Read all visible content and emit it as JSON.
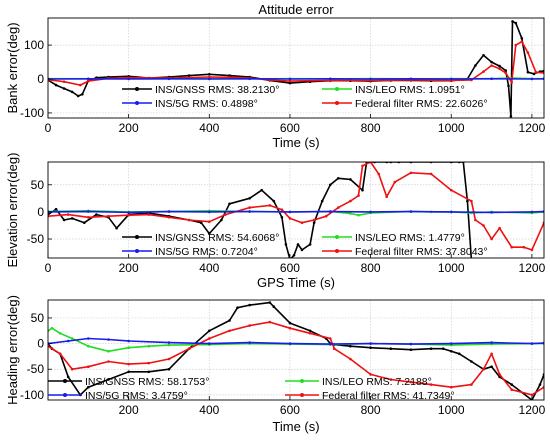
{
  "colors": {
    "ins_gnss": "#000000",
    "ins_leo": "#22dd22",
    "ins_5g": "#1a1aee",
    "federal": "#ee1111",
    "grid": "#cfcfcf",
    "zero_line": "#111111"
  },
  "chart_data": [
    {
      "type": "line",
      "title": "Attitude error",
      "xlabel": "Time (s)",
      "ylabel": "Bank error(deg)",
      "xlim": [
        0,
        1230
      ],
      "ylim": [
        -115,
        180
      ],
      "xticks": [
        0,
        200,
        400,
        600,
        800,
        1000,
        1200
      ],
      "yticks": [
        -100,
        0,
        100
      ],
      "grid": true,
      "legend": "lower-middle",
      "series": [
        {
          "name": "INS/GNSS RMS: 38.2130°",
          "color_key": "ins_gnss",
          "marker": "*",
          "x": [
            0,
            20,
            40,
            60,
            75,
            85,
            100,
            120,
            150,
            200,
            250,
            300,
            350,
            400,
            450,
            500,
            550,
            600,
            650,
            700,
            750,
            800,
            850,
            900,
            950,
            1000,
            1040,
            1060,
            1080,
            1100,
            1120,
            1135,
            1142,
            1148,
            1152,
            1160,
            1175,
            1190,
            1205,
            1220,
            1230
          ],
          "y": [
            -3,
            -18,
            -28,
            -38,
            -50,
            -45,
            -5,
            4,
            6,
            8,
            3,
            6,
            10,
            14,
            10,
            6,
            -4,
            -12,
            -8,
            -5,
            -5,
            -6,
            -4,
            -4,
            -5,
            -5,
            0,
            40,
            70,
            50,
            38,
            25,
            -20,
            -110,
            170,
            165,
            120,
            20,
            15,
            22,
            24
          ]
        },
        {
          "name": "INS/LEO RMS: 1.0951°",
          "color_key": "ins_leo",
          "marker": "*",
          "x": [
            0,
            100,
            200,
            300,
            400,
            500,
            600,
            700,
            800,
            900,
            1000,
            1100,
            1150,
            1200,
            1230
          ],
          "y": [
            1,
            0.5,
            1,
            0.5,
            1,
            0.5,
            1,
            0.5,
            1,
            0.5,
            1,
            1,
            3,
            1,
            1
          ]
        },
        {
          "name": "INS/5G RMS: 0.4898°",
          "color_key": "ins_5g",
          "marker": "*",
          "x": [
            0,
            100,
            200,
            300,
            400,
            500,
            600,
            700,
            800,
            900,
            1000,
            1100,
            1200,
            1230
          ],
          "y": [
            0,
            0.5,
            0,
            0.5,
            0,
            0.5,
            0,
            0.5,
            0,
            0.5,
            0,
            0.5,
            0,
            0.5
          ]
        },
        {
          "name": "Federal filter RMS: 22.6026°",
          "color_key": "federal",
          "marker": "*",
          "x": [
            0,
            40,
            80,
            100,
            150,
            200,
            300,
            400,
            450,
            500,
            550,
            600,
            700,
            800,
            900,
            1000,
            1050,
            1080,
            1100,
            1120,
            1135,
            1150,
            1160,
            1175,
            1190,
            1210,
            1230
          ],
          "y": [
            -2,
            -8,
            -18,
            -6,
            2,
            4,
            3,
            6,
            5,
            3,
            -3,
            -6,
            -4,
            -4,
            -3,
            -4,
            -3,
            22,
            40,
            30,
            18,
            -10,
            100,
            110,
            78,
            20,
            18
          ]
        }
      ]
    },
    {
      "type": "line",
      "title": "",
      "xlabel": "GPS Time (s)",
      "ylabel": "Elevation error(deg)",
      "xlim": [
        0,
        1230
      ],
      "ylim": [
        -85,
        92
      ],
      "xticks": [
        0,
        200,
        400,
        600,
        800,
        1000,
        1200
      ],
      "yticks": [
        -50,
        0,
        50
      ],
      "grid": true,
      "legend": "lower-middle",
      "series": [
        {
          "name": "INS/GNSS RMS: 54.6068°",
          "color_key": "ins_gnss",
          "marker": "*",
          "x": [
            0,
            20,
            40,
            60,
            90,
            120,
            150,
            170,
            200,
            250,
            300,
            350,
            380,
            400,
            430,
            450,
            500,
            530,
            560,
            580,
            590,
            600,
            610,
            620,
            630,
            650,
            660,
            680,
            700,
            720,
            750,
            780,
            790,
            800,
            810,
            840,
            850,
            870,
            900,
            950,
            1000,
            1020,
            1030,
            1040,
            1050,
            1060,
            1080,
            1100,
            1150,
            1200,
            1230
          ],
          "y": [
            -5,
            5,
            -15,
            -12,
            -20,
            -5,
            -10,
            -30,
            -5,
            -2,
            -8,
            -15,
            -20,
            -40,
            -15,
            15,
            25,
            40,
            20,
            -10,
            -60,
            -88,
            -80,
            -60,
            -70,
            -60,
            -20,
            20,
            50,
            62,
            60,
            40,
            92,
            92,
            92,
            92,
            92,
            92,
            92,
            92,
            92,
            92,
            92,
            20,
            -88,
            -88,
            -88,
            -88,
            -88,
            -88,
            -88
          ]
        },
        {
          "name": "INS/LEO RMS: 1.4779°",
          "color_key": "ins_leo",
          "marker": "*",
          "x": [
            0,
            100,
            200,
            300,
            400,
            500,
            600,
            700,
            750,
            770,
            800,
            900,
            950,
            1000,
            1050,
            1100,
            1200,
            1230
          ],
          "y": [
            1,
            2,
            0,
            1,
            2,
            1,
            0,
            1,
            -3,
            -6,
            -2,
            1,
            0,
            0,
            -2,
            0,
            -2,
            0
          ]
        },
        {
          "name": "INS/5G RMS: 0.7204°",
          "color_key": "ins_5g",
          "marker": "*",
          "x": [
            0,
            100,
            200,
            300,
            400,
            500,
            600,
            700,
            800,
            900,
            1000,
            1100,
            1200,
            1230
          ],
          "y": [
            0,
            0.5,
            -1,
            0.5,
            0,
            0.5,
            0,
            0.5,
            0,
            0.5,
            0,
            -1,
            0,
            0.5
          ]
        },
        {
          "name": "Federal filter RMS: 37.8043°",
          "color_key": "federal",
          "marker": "*",
          "x": [
            0,
            50,
            100,
            150,
            200,
            250,
            300,
            350,
            400,
            440,
            500,
            550,
            580,
            600,
            630,
            660,
            690,
            720,
            750,
            770,
            780,
            800,
            820,
            840,
            860,
            900,
            950,
            1000,
            1050,
            1060,
            1080,
            1100,
            1120,
            1150,
            1180,
            1200,
            1230
          ],
          "y": [
            -8,
            -5,
            -10,
            -8,
            -6,
            -5,
            -10,
            -15,
            -18,
            -5,
            8,
            12,
            4,
            -12,
            -20,
            -15,
            -8,
            8,
            20,
            30,
            85,
            92,
            70,
            28,
            55,
            72,
            70,
            40,
            20,
            -15,
            -25,
            -50,
            -30,
            -65,
            -65,
            -70,
            -20
          ]
        }
      ]
    },
    {
      "type": "line",
      "title": "",
      "xlabel": "Time (s)",
      "ylabel": "Heading error(deg)",
      "xlim": [
        0,
        1230
      ],
      "ylim": [
        -110,
        85
      ],
      "xticks": [
        200,
        400,
        600,
        800,
        1000,
        1200
      ],
      "yticks": [
        -100,
        -50,
        0,
        50
      ],
      "grid": true,
      "legend": "lower-middle",
      "series": [
        {
          "name": "INS/GNSS RMS: 58.1753°",
          "color_key": "ins_gnss",
          "marker": "*",
          "x": [
            0,
            10,
            30,
            50,
            80,
            100,
            150,
            200,
            250,
            300,
            350,
            400,
            450,
            470,
            500,
            550,
            560,
            600,
            650,
            690,
            700,
            710,
            750,
            800,
            850,
            900,
            950,
            980,
            1000,
            1020,
            1050,
            1080,
            1100,
            1120,
            1150,
            1200,
            1220,
            1230
          ],
          "y": [
            0,
            -10,
            -20,
            -65,
            -100,
            -85,
            -70,
            -55,
            -55,
            -50,
            -10,
            25,
            45,
            70,
            75,
            80,
            72,
            40,
            25,
            10,
            0,
            -2,
            -5,
            -8,
            -10,
            -12,
            -10,
            -10,
            -15,
            -20,
            -35,
            -50,
            -45,
            -65,
            -80,
            -110,
            -80,
            -60
          ]
        },
        {
          "name": "INS/LEO RMS: 7.2188°",
          "color_key": "ins_leo",
          "marker": "*",
          "x": [
            0,
            10,
            30,
            60,
            100,
            150,
            200,
            250,
            300,
            400,
            500,
            600,
            700,
            800,
            900,
            1000,
            1100,
            1200,
            1230
          ],
          "y": [
            25,
            30,
            20,
            10,
            -5,
            -15,
            -8,
            -5,
            -3,
            -2,
            0,
            -1,
            -2,
            0,
            -1,
            -3,
            -1,
            0,
            0
          ]
        },
        {
          "name": "INS/5G RMS: 3.4759°",
          "color_key": "ins_5g",
          "marker": "*",
          "x": [
            0,
            50,
            100,
            150,
            200,
            300,
            400,
            500,
            600,
            700,
            800,
            900,
            1000,
            1100,
            1200,
            1230
          ],
          "y": [
            0,
            5,
            10,
            8,
            5,
            2,
            0,
            2,
            0,
            -1,
            0,
            -1,
            0,
            2,
            0,
            1
          ]
        },
        {
          "name": "Federal filter RMS: 41.7349°",
          "color_key": "federal",
          "marker": "*",
          "x": [
            0,
            30,
            60,
            100,
            150,
            200,
            250,
            300,
            350,
            400,
            450,
            500,
            550,
            600,
            650,
            700,
            710,
            750,
            800,
            850,
            900,
            950,
            1000,
            1050,
            1080,
            1100,
            1120,
            1150,
            1200,
            1230
          ],
          "y": [
            -5,
            -20,
            -50,
            -45,
            -35,
            -40,
            -38,
            -30,
            -10,
            10,
            25,
            35,
            42,
            30,
            20,
            10,
            -10,
            -30,
            -60,
            -70,
            -75,
            -80,
            -85,
            -80,
            -50,
            -20,
            -60,
            -90,
            -100,
            -85
          ]
        }
      ]
    }
  ]
}
